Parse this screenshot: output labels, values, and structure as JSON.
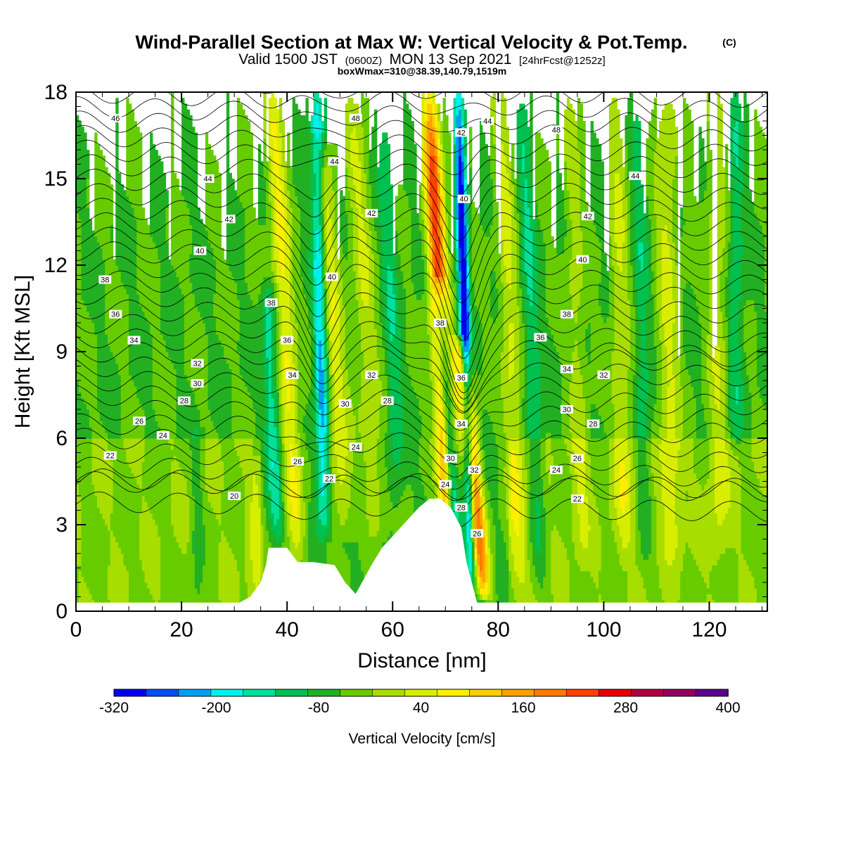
{
  "title": {
    "main": "Wind-Parallel Section at Max W: Vertical Velocity & Pot.Temp.",
    "copyright": "(C)",
    "valid_prefix": "Valid 1500 JST",
    "valid_utc": "(0600Z)",
    "valid_date": "MON 13 Sep 2021",
    "forecast": "[24hrFcst@1252z]",
    "box": "boxWmax=310@38.39,140.79,1519m"
  },
  "chart_data": {
    "type": "heatmap",
    "xlabel": "Distance [nm]",
    "ylabel": "Height [Kft MSL]",
    "xlim": [
      0,
      131
    ],
    "ylim": [
      0,
      18
    ],
    "x_ticks": [
      "0",
      "20",
      "40",
      "60",
      "80",
      "100",
      "120"
    ],
    "y_ticks": [
      "0",
      "3",
      "6",
      "9",
      "12",
      "15",
      "18"
    ],
    "colorbar": {
      "label": "Vertical Velocity [cm/s]",
      "tick_labels": [
        "-320",
        "-200",
        "-80",
        "40",
        "160",
        "280",
        "400"
      ],
      "bounds": [
        -320,
        -280,
        -240,
        -200,
        -160,
        -120,
        -80,
        -40,
        0,
        40,
        80,
        120,
        160,
        200,
        240,
        280,
        320,
        360,
        400
      ],
      "colors": [
        "#0000f0",
        "#0050f0",
        "#00a0f0",
        "#00f0f0",
        "#00e09a",
        "#00c050",
        "#22b022",
        "#66cc00",
        "#a8dd00",
        "#d8ee00",
        "#ffee00",
        "#ffcc00",
        "#ffa000",
        "#ff7800",
        "#ff4000",
        "#e80000",
        "#b00040",
        "#900060",
        "#600090"
      ]
    },
    "background_value": -40,
    "w_features": [
      {
        "x": 71,
        "z0": 2,
        "z1": 18,
        "tilt": -0.25,
        "amp": 300,
        "width": 1.7
      },
      {
        "x": 75,
        "z0": 1,
        "z1": 18,
        "tilt": -0.15,
        "amp": -290,
        "width": 1.0
      },
      {
        "x": 77,
        "z0": 1,
        "z1": 9,
        "tilt": -0.5,
        "amp": 280,
        "width": 1.6
      },
      {
        "x": 72,
        "z0": 2,
        "z1": 11,
        "tilt": -0.35,
        "amp": -260,
        "width": 1.2
      },
      {
        "x": 47,
        "z0": 3,
        "z1": 18,
        "tilt": -0.1,
        "amp": -180,
        "width": 1.3
      },
      {
        "x": 42,
        "z0": 2,
        "z1": 18,
        "tilt": -0.3,
        "amp": 130,
        "width": 1.8
      },
      {
        "x": 51,
        "z0": 3,
        "z1": 16,
        "tilt": -0.35,
        "amp": 110,
        "width": 2.0
      },
      {
        "x": 38,
        "z0": 3,
        "z1": 11,
        "tilt": -0.2,
        "amp": -110,
        "width": 1.4
      },
      {
        "x": 57,
        "z0": 3,
        "z1": 18,
        "tilt": -0.3,
        "amp": 80,
        "width": 2.0
      },
      {
        "x": 61,
        "z0": 4,
        "z1": 18,
        "tilt": -0.2,
        "amp": -70,
        "width": 1.5
      },
      {
        "x": 84,
        "z0": 1,
        "z1": 18,
        "tilt": -0.2,
        "amp": 90,
        "width": 1.8
      },
      {
        "x": 88,
        "z0": 1,
        "z1": 18,
        "tilt": -0.2,
        "amp": -80,
        "width": 1.5
      },
      {
        "x": 96,
        "z0": 2,
        "z1": 18,
        "tilt": -0.15,
        "amp": 60,
        "width": 1.6
      },
      {
        "x": 104,
        "z0": 2,
        "z1": 18,
        "tilt": -0.1,
        "amp": 80,
        "width": 1.8
      },
      {
        "x": 108,
        "z0": 2,
        "z1": 18,
        "tilt": -0.1,
        "amp": -60,
        "width": 1.5
      },
      {
        "x": 113,
        "z0": 2,
        "z1": 18,
        "tilt": -0.1,
        "amp": 90,
        "width": 2.0
      },
      {
        "x": 122,
        "z0": 2,
        "z1": 18,
        "tilt": -0.05,
        "amp": 70,
        "width": 2.0
      },
      {
        "x": 125,
        "z0": 6,
        "z1": 18,
        "tilt": 0.0,
        "amp": -70,
        "width": 1.5
      },
      {
        "x": 23,
        "z0": 0,
        "z1": 6,
        "tilt": 0.0,
        "amp": -50,
        "width": 1.2
      },
      {
        "x": 34,
        "z0": 0,
        "z1": 5,
        "tilt": 0.0,
        "amp": 50,
        "width": 1.5
      }
    ],
    "terrain": {
      "x": [
        0,
        31,
        33,
        35,
        36,
        36.5,
        40,
        42,
        45,
        49,
        51,
        53,
        56,
        58,
        61,
        63,
        65,
        67,
        69,
        71,
        73,
        74,
        75,
        76,
        80,
        131
      ],
      "z": [
        0.3,
        0.3,
        0.5,
        1.0,
        1.6,
        2.2,
        2.2,
        1.7,
        1.7,
        1.6,
        1.0,
        0.6,
        1.6,
        2.2,
        2.8,
        3.2,
        3.6,
        3.9,
        3.9,
        3.6,
        2.9,
        1.7,
        1.0,
        0.3,
        0.3,
        0.3
      ]
    },
    "theta_contour_labels": [
      {
        "text": "46",
        "x": 7.5,
        "z": 17.1
      },
      {
        "text": "44",
        "x": 25,
        "z": 15.0
      },
      {
        "text": "42",
        "x": 29,
        "z": 13.6
      },
      {
        "text": "40",
        "x": 23.5,
        "z": 12.5
      },
      {
        "text": "38",
        "x": 5.5,
        "z": 11.5
      },
      {
        "text": "36",
        "x": 7.5,
        "z": 10.3
      },
      {
        "text": "34",
        "x": 11,
        "z": 9.4
      },
      {
        "text": "32",
        "x": 23,
        "z": 8.6
      },
      {
        "text": "30",
        "x": 23,
        "z": 7.9
      },
      {
        "text": "28",
        "x": 20.5,
        "z": 7.3
      },
      {
        "text": "26",
        "x": 12,
        "z": 6.6
      },
      {
        "text": "24",
        "x": 16.5,
        "z": 6.1
      },
      {
        "text": "22",
        "x": 6.5,
        "z": 5.4
      },
      {
        "text": "20",
        "x": 30,
        "z": 4.0
      },
      {
        "text": "48",
        "x": 53,
        "z": 17.1
      },
      {
        "text": "44",
        "x": 49,
        "z": 15.6
      },
      {
        "text": "42",
        "x": 56,
        "z": 13.8
      },
      {
        "text": "40",
        "x": 48.5,
        "z": 11.6
      },
      {
        "text": "38",
        "x": 37,
        "z": 10.7
      },
      {
        "text": "36",
        "x": 40,
        "z": 9.4
      },
      {
        "text": "34",
        "x": 41,
        "z": 8.2
      },
      {
        "text": "32",
        "x": 56,
        "z": 8.2
      },
      {
        "text": "30",
        "x": 51,
        "z": 7.2
      },
      {
        "text": "28",
        "x": 59,
        "z": 7.3
      },
      {
        "text": "24",
        "x": 53,
        "z": 5.7
      },
      {
        "text": "26",
        "x": 42,
        "z": 5.2
      },
      {
        "text": "22",
        "x": 48,
        "z": 4.6
      },
      {
        "text": "42",
        "x": 73,
        "z": 16.6
      },
      {
        "text": "44",
        "x": 78,
        "z": 17.0
      },
      {
        "text": "40",
        "x": 73.5,
        "z": 14.3
      },
      {
        "text": "38",
        "x": 69,
        "z": 10.0
      },
      {
        "text": "36",
        "x": 73,
        "z": 8.1
      },
      {
        "text": "34",
        "x": 73,
        "z": 6.5
      },
      {
        "text": "30",
        "x": 71,
        "z": 5.3
      },
      {
        "text": "32",
        "x": 75.5,
        "z": 4.9
      },
      {
        "text": "24",
        "x": 70,
        "z": 4.4
      },
      {
        "text": "28",
        "x": 73,
        "z": 3.6
      },
      {
        "text": "26",
        "x": 76,
        "z": 2.7
      },
      {
        "text": "48",
        "x": 91,
        "z": 16.7
      },
      {
        "text": "44",
        "x": 106,
        "z": 15.1
      },
      {
        "text": "42",
        "x": 97,
        "z": 13.7
      },
      {
        "text": "40",
        "x": 96,
        "z": 12.2
      },
      {
        "text": "38",
        "x": 93,
        "z": 10.3
      },
      {
        "text": "36",
        "x": 88,
        "z": 9.5
      },
      {
        "text": "34",
        "x": 93,
        "z": 8.4
      },
      {
        "text": "32",
        "x": 100,
        "z": 8.2
      },
      {
        "text": "30",
        "x": 93,
        "z": 7.0
      },
      {
        "text": "28",
        "x": 98,
        "z": 6.5
      },
      {
        "text": "26",
        "x": 95,
        "z": 5.3
      },
      {
        "text": "24",
        "x": 91,
        "z": 4.9
      },
      {
        "text": "22",
        "x": 95,
        "z": 3.9
      }
    ]
  }
}
